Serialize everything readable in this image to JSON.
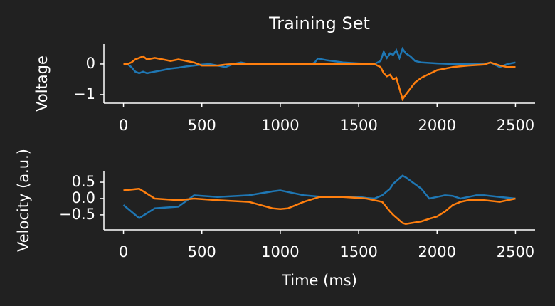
{
  "chart_data": [
    {
      "type": "line",
      "title": "Training Set",
      "ylabel": "Voltage",
      "x": [
        0,
        25,
        50,
        75,
        100,
        125,
        150,
        200,
        250,
        300,
        350,
        400,
        450,
        500,
        550,
        600,
        650,
        700,
        750,
        800,
        1000,
        1200,
        1220,
        1240,
        1300,
        1400,
        1500,
        1600,
        1640,
        1660,
        1680,
        1700,
        1720,
        1740,
        1760,
        1780,
        1800,
        1830,
        1860,
        1900,
        2000,
        2100,
        2200,
        2300,
        2340,
        2400,
        2450,
        2500
      ],
      "series": [
        {
          "color": "#1f77b4",
          "values": [
            0,
            0,
            -0.1,
            -0.25,
            -0.3,
            -0.25,
            -0.3,
            -0.25,
            -0.2,
            -0.15,
            -0.12,
            -0.08,
            -0.05,
            -0.02,
            0,
            -0.05,
            -0.1,
            0,
            0.05,
            0,
            0,
            0,
            0.05,
            0.18,
            0.12,
            0.05,
            0.02,
            0,
            0.1,
            0.4,
            0.2,
            0.35,
            0.3,
            0.45,
            0.2,
            0.5,
            0.35,
            0.25,
            0.1,
            0.05,
            0.02,
            0,
            0,
            0,
            0.05,
            -0.1,
            0,
            0.05
          ]
        },
        {
          "color": "#ff7f0e",
          "values": [
            0,
            0,
            0.05,
            0.15,
            0.2,
            0.25,
            0.15,
            0.2,
            0.15,
            0.1,
            0.15,
            0.1,
            0.05,
            -0.05,
            -0.05,
            -0.05,
            -0.02,
            0,
            0,
            0,
            0,
            0,
            0,
            0,
            0,
            0,
            0,
            0,
            -0.1,
            -0.3,
            -0.4,
            -0.35,
            -0.5,
            -0.45,
            -0.8,
            -1.15,
            -1.0,
            -0.8,
            -0.6,
            -0.45,
            -0.2,
            -0.1,
            -0.05,
            -0.02,
            0.05,
            -0.05,
            -0.1,
            -0.1
          ]
        }
      ],
      "xlim": [
        -125,
        2625
      ],
      "ylim": [
        -1.28,
        0.65
      ],
      "xticks": [
        0,
        500,
        1000,
        1500,
        2000,
        2500
      ],
      "yticks": [
        {
          "value": -1,
          "label": "−1"
        },
        0
      ]
    },
    {
      "type": "line",
      "ylabel": "Velocity (a.u.)",
      "xlabel": "Time (ms)",
      "x": [
        0,
        100,
        200,
        350,
        450,
        600,
        800,
        950,
        1000,
        1050,
        1150,
        1250,
        1300,
        1400,
        1500,
        1550,
        1600,
        1650,
        1700,
        1720,
        1780,
        1800,
        1900,
        1950,
        2000,
        2050,
        2100,
        2150,
        2200,
        2250,
        2300,
        2400,
        2500
      ],
      "series": [
        {
          "color": "#1f77b4",
          "values": [
            -0.2,
            -0.6,
            -0.3,
            -0.25,
            0.1,
            0.05,
            0.1,
            0.22,
            0.25,
            0.2,
            0.1,
            0.06,
            0.05,
            0.05,
            0.05,
            0.02,
            0,
            0.1,
            0.3,
            0.45,
            0.7,
            0.65,
            0.3,
            0,
            0.05,
            0.1,
            0.08,
            0,
            0.05,
            0.1,
            0.1,
            0.05,
            0
          ]
        },
        {
          "color": "#ff7f0e",
          "values": [
            0.25,
            0.3,
            0,
            -0.05,
            0,
            -0.05,
            -0.1,
            -0.3,
            -0.32,
            -0.3,
            -0.1,
            0.05,
            0.05,
            0.05,
            0.02,
            0,
            -0.05,
            -0.1,
            -0.4,
            -0.5,
            -0.75,
            -0.78,
            -0.7,
            -0.62,
            -0.55,
            -0.4,
            -0.2,
            -0.1,
            -0.05,
            -0.05,
            -0.05,
            -0.1,
            0
          ]
        }
      ],
      "xlim": [
        -125,
        2625
      ],
      "ylim": [
        -0.96,
        0.85
      ],
      "xticks": [
        0,
        500,
        1000,
        1500,
        2000,
        2500
      ],
      "yticks": [
        {
          "value": -0.5,
          "label": "−0.5"
        },
        {
          "value": 0,
          "label": "0.0"
        },
        {
          "value": 0.5,
          "label": "0.5"
        }
      ]
    }
  ]
}
